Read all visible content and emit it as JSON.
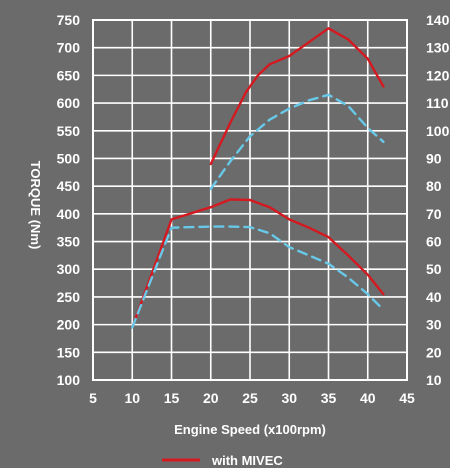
{
  "chart_data": {
    "type": "line",
    "xlabel": "Engine Speed (x100rpm)",
    "ylabel": "TORQUE (Nm)",
    "xlim": [
      5,
      45
    ],
    "ylim": [
      100,
      750
    ],
    "y2lim": [
      10,
      140
    ],
    "x_ticks": [
      "5",
      "10",
      "15",
      "20",
      "25",
      "30",
      "35",
      "40",
      "45"
    ],
    "y_ticks": [
      "100",
      "150",
      "200",
      "250",
      "300",
      "350",
      "400",
      "450",
      "500",
      "550",
      "600",
      "650",
      "700",
      "750"
    ],
    "y2_ticks": [
      "10",
      "20",
      "30",
      "40",
      "50",
      "60",
      "70",
      "80",
      "90",
      "100",
      "110",
      "120",
      "130",
      "140"
    ],
    "grid": true,
    "legend_position": "bottom-center",
    "series": [
      {
        "name": "with MIVEC",
        "color": "#d41920",
        "style": "solid",
        "axis": "left",
        "x": [
          10,
          15,
          20,
          22.5,
          25,
          27.5,
          30,
          32.5,
          35,
          37.5,
          40,
          42
        ],
        "y": [
          195,
          390,
          412,
          426,
          425,
          412,
          390,
          375,
          358,
          325,
          290,
          255
        ]
      },
      {
        "color": "#68c8e8",
        "style": "dashed",
        "axis": "left",
        "x": [
          10,
          15,
          17.5,
          20,
          22.5,
          25,
          27.5,
          30,
          32.5,
          35,
          37.5,
          40,
          42
        ],
        "y": [
          195,
          375,
          376,
          377,
          377,
          376,
          365,
          340,
          325,
          310,
          285,
          255,
          227
        ]
      },
      {
        "name": "with MIVEC",
        "color": "#d41920",
        "style": "solid",
        "axis": "right",
        "x": [
          20,
          22.5,
          24.5,
          26,
          27.5,
          30,
          32.5,
          35,
          37.5,
          40,
          42
        ],
        "y": [
          88,
          103,
          114,
          120,
          124,
          127,
          132,
          137,
          133,
          126,
          116
        ]
      },
      {
        "color": "#68c8e8",
        "style": "dashed",
        "axis": "right",
        "x": [
          20,
          22.5,
          25,
          27.5,
          30,
          32.5,
          35,
          37.5,
          40,
          42
        ],
        "y": [
          79,
          89,
          98,
          104,
          108,
          111,
          113,
          109,
          101,
          96
        ]
      }
    ],
    "legend": [
      {
        "label": "with MIVEC",
        "color": "#d41920",
        "style": "solid"
      }
    ]
  }
}
